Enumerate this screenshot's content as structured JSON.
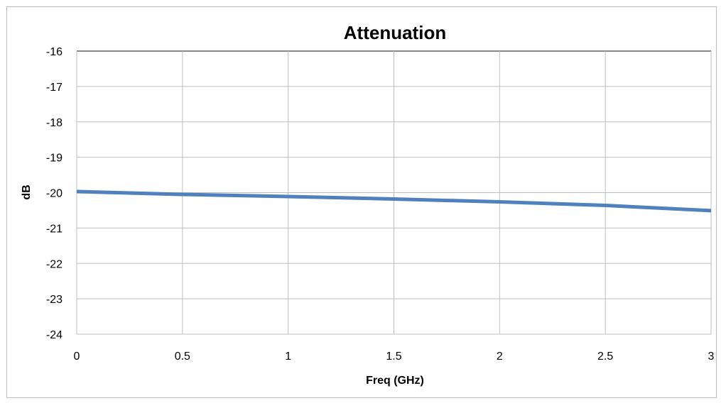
{
  "chart_data": {
    "type": "line",
    "title": "Attenuation",
    "xlabel": "Freq (GHz)",
    "ylabel": "dB",
    "xlim": [
      0,
      3
    ],
    "ylim": [
      -24,
      -16
    ],
    "xticks": [
      0,
      0.5,
      1,
      1.5,
      2,
      2.5,
      3
    ],
    "yticks": [
      -16,
      -17,
      -18,
      -19,
      -20,
      -21,
      -22,
      -23,
      -24
    ],
    "xtick_labels": [
      "0",
      "0.5",
      "1",
      "1.5",
      "2",
      "2.5",
      "3"
    ],
    "ytick_labels": [
      "-16",
      "-17",
      "-18",
      "-19",
      "-20",
      "-21",
      "-22",
      "-23",
      "-24"
    ],
    "grid": true,
    "legend": "none",
    "series": [
      {
        "color": "#4f81bd",
        "x": [
          0,
          0.5,
          1,
          1.5,
          2,
          2.5,
          3
        ],
        "y": [
          -19.97,
          -20.05,
          -20.11,
          -20.18,
          -20.26,
          -20.36,
          -20.51
        ]
      }
    ]
  }
}
